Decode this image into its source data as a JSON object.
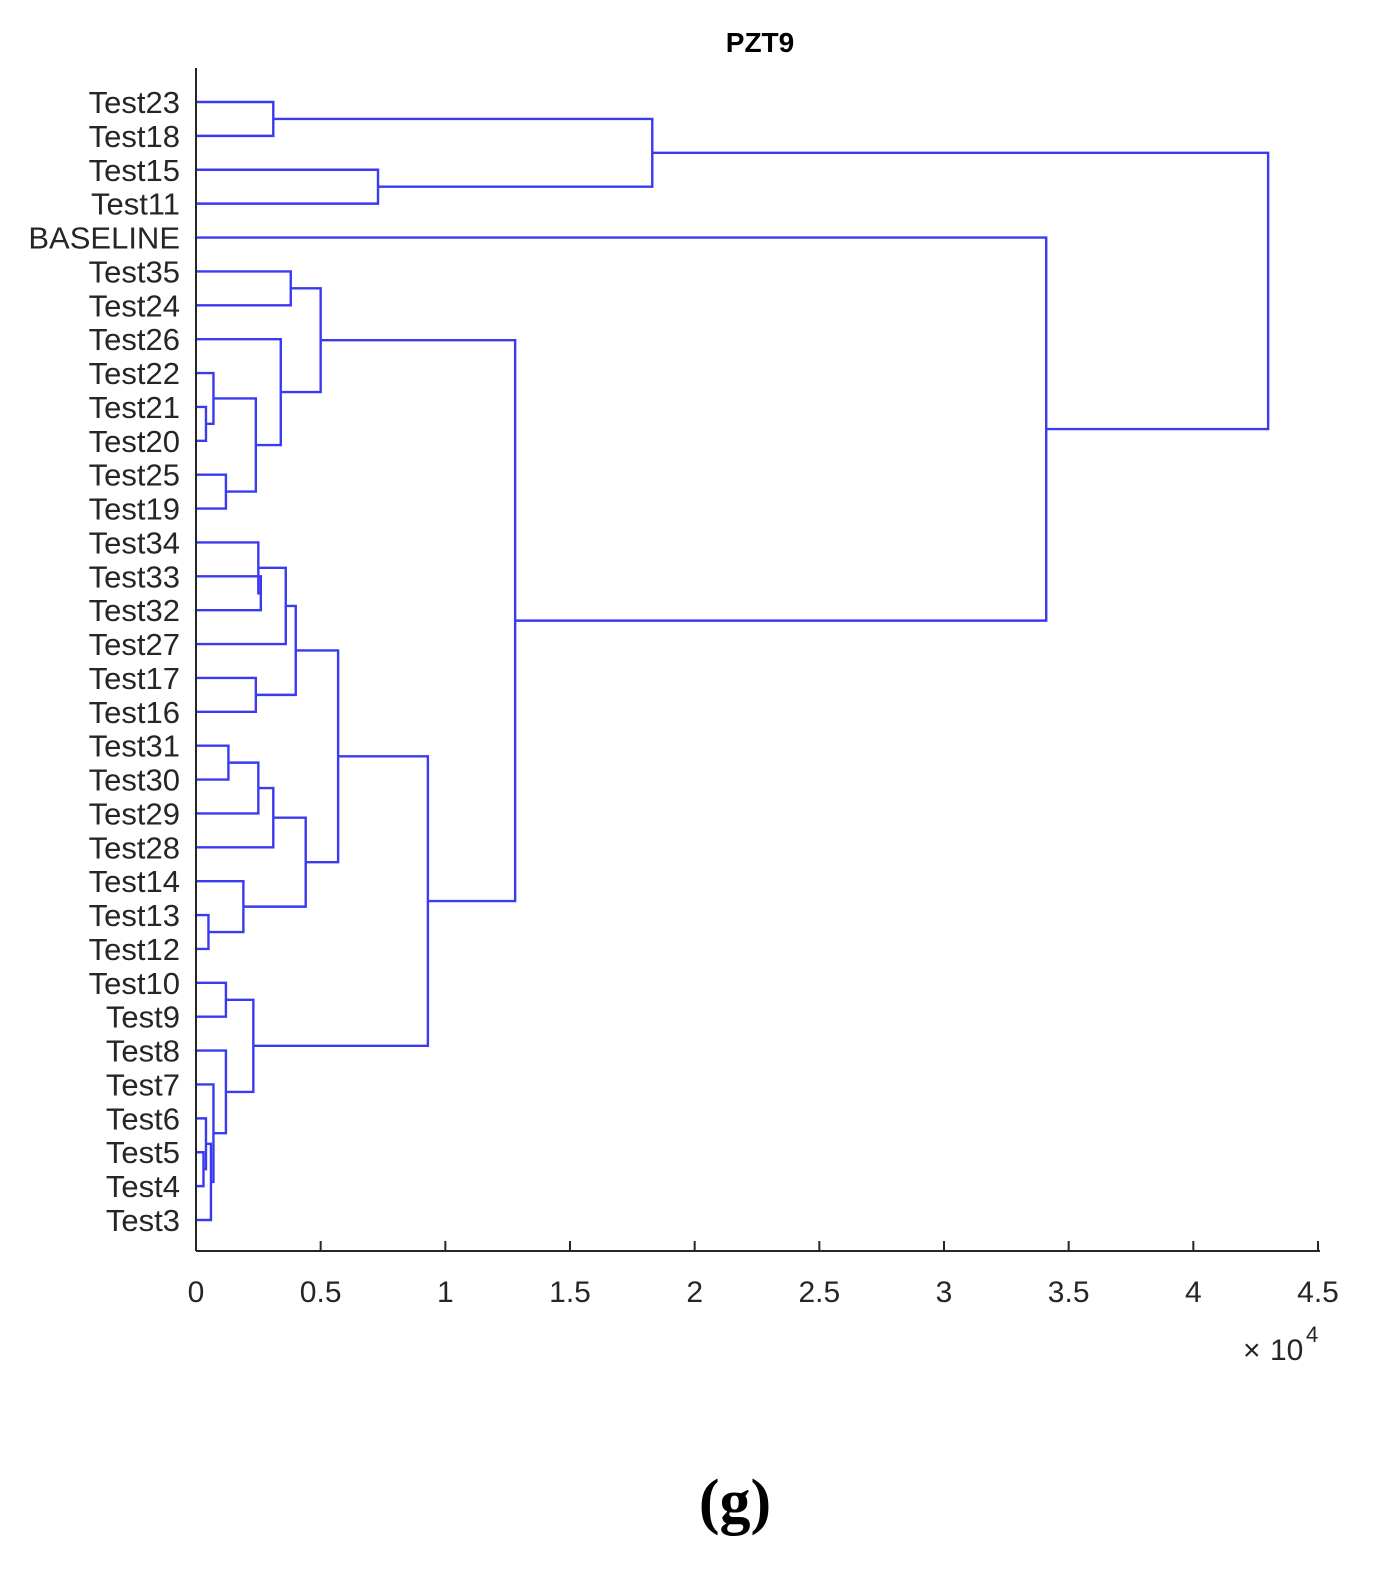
{
  "caption": "(g)",
  "chart_data": {
    "type": "dendrogram",
    "orientation": "horizontal",
    "title": "PZT9",
    "x_multiplier_base": "10",
    "x_multiplier_exp": "4",
    "xlim": [
      0,
      45000
    ],
    "xticks": [
      0,
      5000,
      10000,
      15000,
      20000,
      25000,
      30000,
      35000,
      40000,
      45000
    ],
    "xtick_labels": [
      "0",
      "0.5",
      "1",
      "1.5",
      "2",
      "2.5",
      "3",
      "3.5",
      "4",
      "4.5"
    ],
    "link_color": "#3a3af0",
    "leaves": [
      "Test23",
      "Test18",
      "Test15",
      "Test11",
      "BASELINE",
      "Test35",
      "Test24",
      "Test26",
      "Test22",
      "Test21",
      "Test20",
      "Test25",
      "Test19",
      "Test34",
      "Test33",
      "Test32",
      "Test27",
      "Test17",
      "Test16",
      "Test31",
      "Test30",
      "Test29",
      "Test28",
      "Test14",
      "Test13",
      "Test12",
      "Test10",
      "Test9",
      "Test8",
      "Test7",
      "Test6",
      "Test5",
      "Test4",
      "Test3"
    ],
    "merges": [
      {
        "id": "C1",
        "left": "Test23",
        "right": "Test18",
        "height": 3100
      },
      {
        "id": "C2",
        "left": "Test15",
        "right": "Test11",
        "height": 7300
      },
      {
        "id": "C3",
        "left": "C1",
        "right": "C2",
        "height": 18300
      },
      {
        "id": "C4",
        "left": "Test35",
        "right": "Test24",
        "height": 3800
      },
      {
        "id": "C5",
        "left": "Test21",
        "right": "Test20",
        "height": 400
      },
      {
        "id": "C6",
        "left": "Test22",
        "right": "C5",
        "height": 700
      },
      {
        "id": "C7",
        "left": "Test25",
        "right": "Test19",
        "height": 1200
      },
      {
        "id": "C8",
        "left": "C6",
        "right": "C7",
        "height": 2400
      },
      {
        "id": "C9",
        "left": "Test26",
        "right": "C8",
        "height": 3400
      },
      {
        "id": "C10",
        "left": "C4",
        "right": "C9",
        "height": 5000
      },
      {
        "id": "C11",
        "left": "Test33",
        "right": "Test32",
        "height": 2600
      },
      {
        "id": "C12",
        "left": "Test34",
        "right": "C11",
        "height": 2500
      },
      {
        "id": "C13",
        "left": "C12",
        "right": "Test27",
        "height": 3600
      },
      {
        "id": "C14",
        "left": "Test17",
        "right": "Test16",
        "height": 2400
      },
      {
        "id": "C15",
        "left": "C13",
        "right": "C14",
        "height": 4000
      },
      {
        "id": "C16",
        "left": "Test31",
        "right": "Test30",
        "height": 1300
      },
      {
        "id": "C17",
        "left": "C16",
        "right": "Test29",
        "height": 2500
      },
      {
        "id": "C18",
        "left": "C17",
        "right": "Test28",
        "height": 3100
      },
      {
        "id": "C19",
        "left": "Test13",
        "right": "Test12",
        "height": 500
      },
      {
        "id": "C20",
        "left": "Test14",
        "right": "C19",
        "height": 1900
      },
      {
        "id": "C21",
        "left": "C18",
        "right": "C20",
        "height": 4400
      },
      {
        "id": "C22",
        "left": "C15",
        "right": "C21",
        "height": 5700
      },
      {
        "id": "C23",
        "left": "Test10",
        "right": "Test9",
        "height": 1200
      },
      {
        "id": "C24",
        "left": "Test5",
        "right": "Test4",
        "height": 300
      },
      {
        "id": "C25",
        "left": "Test6",
        "right": "C24",
        "height": 400
      },
      {
        "id": "C26",
        "left": "C25",
        "right": "Test3",
        "height": 600
      },
      {
        "id": "C27",
        "left": "Test7",
        "right": "C26",
        "height": 700
      },
      {
        "id": "C28",
        "left": "Test8",
        "right": "C27",
        "height": 1200
      },
      {
        "id": "C29",
        "left": "C23",
        "right": "C28",
        "height": 2300
      },
      {
        "id": "C30",
        "left": "C22",
        "right": "C29",
        "height": 9300
      },
      {
        "id": "C31",
        "left": "C10",
        "right": "C30",
        "height": 12800
      },
      {
        "id": "C32",
        "left": "BASELINE",
        "right": "C31",
        "height": 34100
      },
      {
        "id": "C33",
        "left": "C3",
        "right": "C32",
        "height": 43000
      }
    ]
  }
}
